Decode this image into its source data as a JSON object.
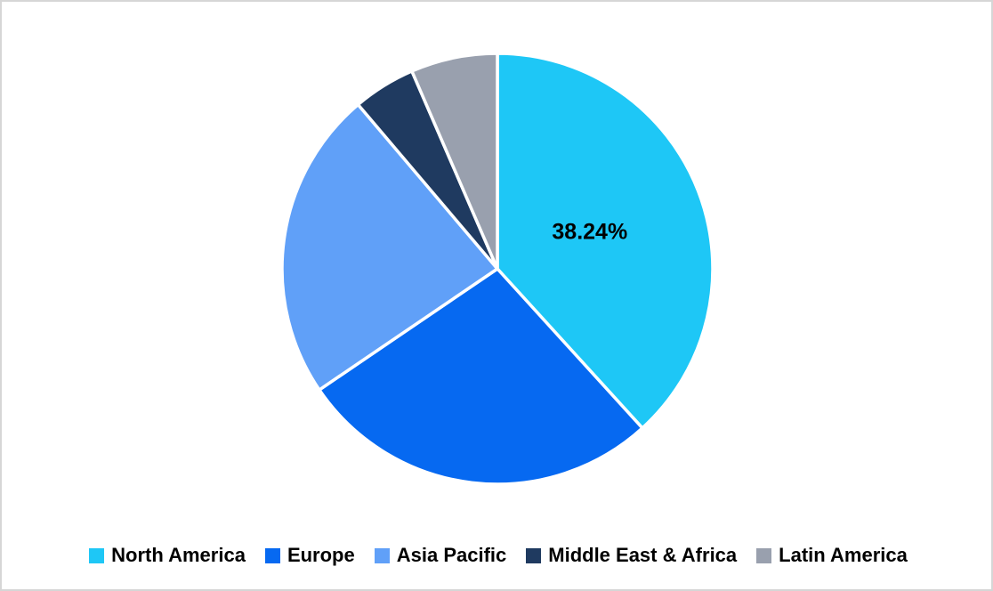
{
  "canvas": {
    "background_color": "#FFFFFF",
    "border_color": "#D6D6D6"
  },
  "chart_data": {
    "type": "pie",
    "title": "",
    "categories": [
      "North America",
      "Europe",
      "Asia Pacific",
      "Middle East & Africa",
      "Latin America"
    ],
    "values": [
      38.24,
      27.26,
      23.3,
      4.7,
      6.5
    ],
    "colors": [
      "#1EC7F6",
      "#0669F1",
      "#60A0F8",
      "#1F3A60",
      "#99A0AE"
    ],
    "data_labels": [
      "38.24%",
      "",
      "",
      "",
      ""
    ],
    "data_label_color": "#000000",
    "start_angle_deg": 0,
    "direction": "clockwise",
    "slice_border_color": "#FFFFFF",
    "legend_position": "bottom",
    "legend_text_color": "#000000"
  }
}
